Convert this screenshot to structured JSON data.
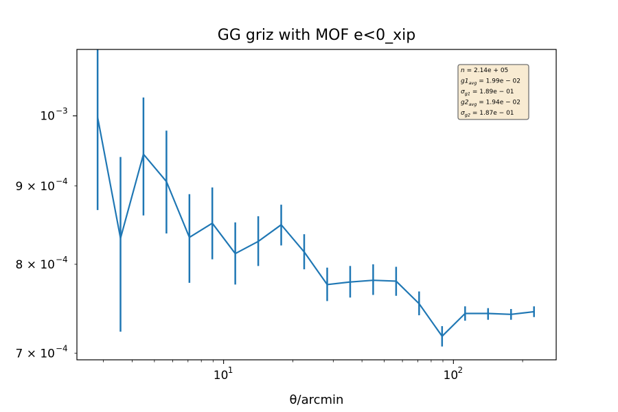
{
  "chart_data": {
    "type": "line",
    "title": "GG griz with MOF e<0_xip",
    "xlabel": "θ/arcmin",
    "ylabel": "",
    "xscale": "log",
    "yscale": "log",
    "xlim": [
      2.3,
      280
    ],
    "ylim": [
      0.000693,
      0.001105
    ],
    "x_ticks": [
      {
        "value": 10,
        "base": "10",
        "exp": "1"
      },
      {
        "value": 100,
        "base": "10",
        "exp": "2"
      }
    ],
    "y_ticks": [
      {
        "value": 0.001,
        "mant": "",
        "base": "10",
        "exp": "−3"
      },
      {
        "value": 0.0009,
        "mant": "9 × ",
        "base": "10",
        "exp": "−4"
      },
      {
        "value": 0.0008,
        "mant": "8 × ",
        "base": "10",
        "exp": "−4"
      },
      {
        "value": 0.0007,
        "mant": "7 × ",
        "base": "10",
        "exp": "−4"
      }
    ],
    "series": [
      {
        "color": "#1f77b4",
        "x": [
          2.83,
          3.56,
          4.48,
          5.64,
          7.1,
          8.93,
          11.24,
          14.15,
          17.81,
          22.42,
          28.23,
          35.54,
          44.74,
          56.32,
          70.9,
          89.26,
          112.4,
          141.5,
          178.1,
          224.2
        ],
        "y": [
          0.000998,
          0.000832,
          0.000944,
          0.000906,
          0.000833,
          0.000851,
          0.000813,
          0.000828,
          0.000849,
          0.000815,
          0.000776,
          0.000779,
          0.000781,
          0.00078,
          0.000754,
          0.000718,
          0.000743,
          0.000743,
          0.000742,
          0.000745
        ],
        "yerr_low": [
          0.000868,
          0.000723,
          0.000861,
          0.000838,
          0.000778,
          0.000806,
          0.000776,
          0.000798,
          0.000823,
          0.000794,
          0.000757,
          0.000761,
          0.000764,
          0.000763,
          0.000741,
          0.000707,
          0.000735,
          0.000736,
          0.000736,
          0.000739
        ],
        "yerr_high": [
          0.001105,
          0.00094,
          0.001028,
          0.000978,
          0.000889,
          0.000898,
          0.000852,
          0.00086,
          0.000875,
          0.000837,
          0.000796,
          0.000798,
          0.0008,
          0.000797,
          0.000768,
          0.000729,
          0.000751,
          0.000749,
          0.000748,
          0.000751
        ]
      }
    ],
    "legend_position": "top-right",
    "stats_box": [
      {
        "sym": "n",
        "sub": "",
        "value": "= 2.14e + 05"
      },
      {
        "sym": "g1",
        "sub": "avg",
        "value": "= 1.99e − 02"
      },
      {
        "sym": "σ",
        "sub": "g1",
        "value": "= 1.89e − 01"
      },
      {
        "sym": "g2",
        "sub": "avg",
        "value": "= 1.94e − 02"
      },
      {
        "sym": "σ",
        "sub": "g2",
        "value": "= 1.87e − 01"
      }
    ],
    "grid": false
  }
}
